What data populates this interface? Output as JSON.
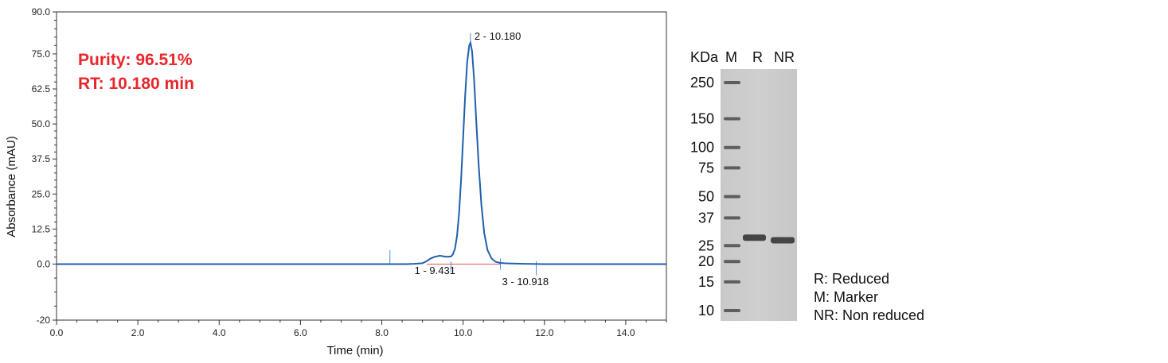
{
  "chart_data": [
    {
      "type": "line",
      "title": "",
      "xlabel": "Time (min)",
      "ylabel": "Absorbance (mAU)",
      "xlim": [
        0,
        15
      ],
      "ylim": [
        -20,
        90
      ],
      "x_ticks": [
        "0.0",
        "2.0",
        "4.0",
        "6.0",
        "8.0",
        "10.0",
        "12.0",
        "14.0"
      ],
      "y_ticks": [
        "-20",
        "0.0",
        "12.5",
        "25.0",
        "37.5",
        "50.0",
        "62.5",
        "75.0",
        "90.0"
      ],
      "grid": false,
      "annotations": [
        "Purity: 96.51%",
        "RT: 10.180 min"
      ],
      "series": [
        {
          "x": [
            0,
            2,
            4,
            6,
            8,
            8.2,
            8.4,
            8.6,
            8.8,
            9.0,
            9.1,
            9.2,
            9.3,
            9.4,
            9.431,
            9.5,
            9.6,
            9.7,
            9.75,
            9.8,
            9.85,
            9.9,
            9.95,
            10.0,
            10.05,
            10.1,
            10.15,
            10.18,
            10.22,
            10.27,
            10.32,
            10.38,
            10.45,
            10.52,
            10.6,
            10.7,
            10.8,
            10.918,
            11.0,
            11.2,
            11.5,
            12.0,
            12.5,
            13.0,
            13.5,
            14.0,
            15.0
          ],
          "y": [
            0.0,
            0.0,
            0.0,
            0.0,
            0.0,
            0.0,
            0.0,
            0.0,
            0.1,
            0.3,
            1.0,
            2.0,
            2.6,
            2.9,
            3.0,
            2.8,
            2.6,
            2.7,
            3.5,
            5.5,
            10.0,
            18.0,
            30.0,
            45.0,
            60.0,
            72.0,
            78.0,
            79.0,
            76.0,
            66.0,
            52.0,
            36.0,
            21.0,
            11.0,
            5.0,
            2.0,
            0.8,
            0.4,
            0.3,
            0.2,
            0.1,
            0.0,
            0.0,
            0.0,
            0.0,
            0.0,
            0.0
          ]
        }
      ],
      "peaks": [
        {
          "label": "1 - 9.431",
          "rt": 9.431
        },
        {
          "label": "2 - 10.180",
          "rt": 10.18
        },
        {
          "label": "3 - 10.918",
          "rt": 10.918
        }
      ],
      "baseline_range": [
        9.1,
        10.918
      ],
      "colors": {
        "trace": "#1f5fad",
        "baseline": "#e05555",
        "annotation": "#e8262b",
        "event_marks": "#4a90d9"
      }
    }
  ],
  "gel": {
    "header": [
      "KDa",
      "M",
      "R",
      "NR"
    ],
    "lanes": [
      "M",
      "R",
      "NR"
    ],
    "marker_kda": [
      "250",
      "150",
      "100",
      "75",
      "50",
      "37",
      "25",
      "20",
      "15",
      "10"
    ],
    "band_kda": {
      "R": 28,
      "NR": 27
    }
  },
  "legend": {
    "items": [
      "R: Reduced",
      "M: Marker",
      "NR: Non reduced"
    ]
  }
}
